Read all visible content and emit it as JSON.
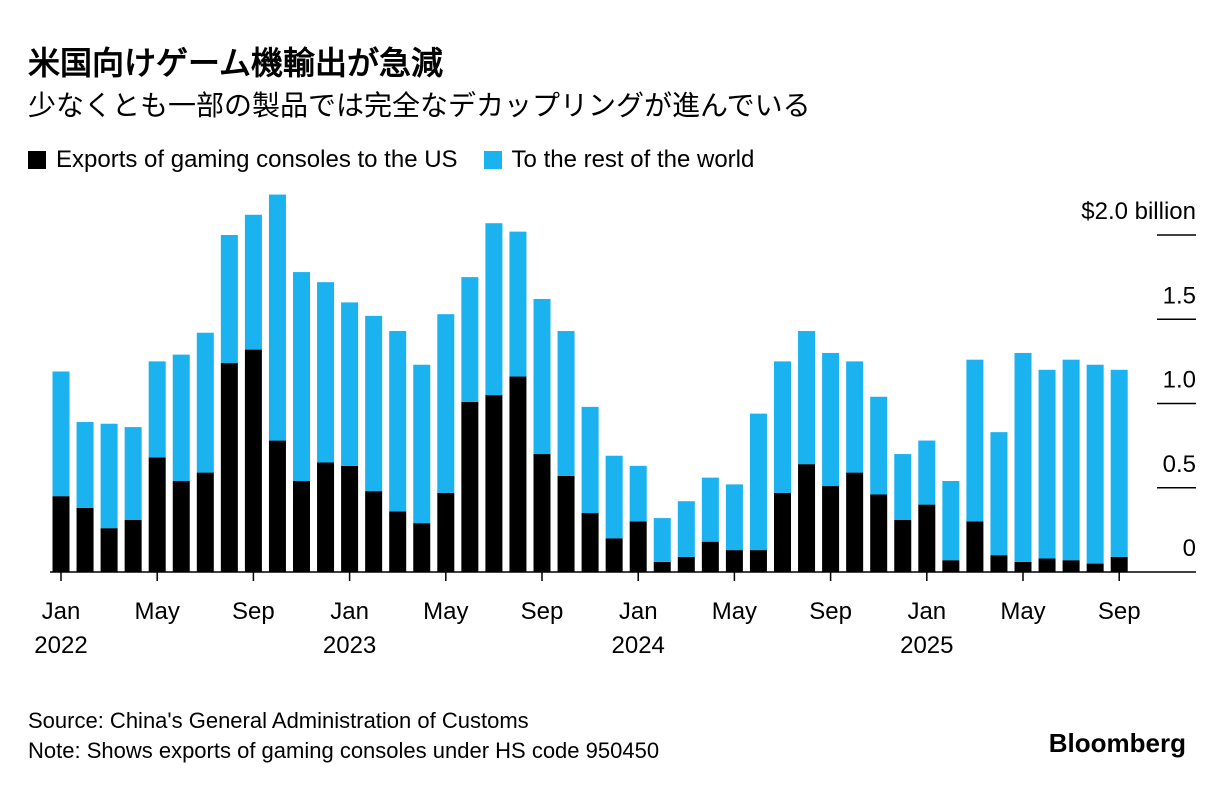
{
  "title": "米国向けゲーム機輸出が急減",
  "subtitle": "少なくとも一部の製品では完全なデカップリングが進んでいる",
  "legend": {
    "us_label": "Exports of gaming consoles to the US",
    "row_label": "To the rest of the world"
  },
  "source": "Source: China's General Administration of Customs",
  "note": "Note: Shows exports of gaming consoles under HS code 950450",
  "brand": "Bloomberg",
  "colors": {
    "us": "#000000",
    "row": "#1bb2f0",
    "axis": "#000000"
  },
  "chart_data": {
    "type": "bar",
    "stacked": true,
    "title": "米国向けゲーム機輸出が急減",
    "ylabel": "",
    "ylim": [
      0,
      2.0
    ],
    "yticks": [
      {
        "value": 2.0,
        "label": "$2.0 billion"
      },
      {
        "value": 1.5,
        "label": "1.5"
      },
      {
        "value": 1.0,
        "label": "1.0"
      },
      {
        "value": 0.5,
        "label": "0.5"
      },
      {
        "value": 0,
        "label": "0"
      }
    ],
    "xticks": [
      {
        "index": 0,
        "month": "Jan",
        "year": "2022"
      },
      {
        "index": 4,
        "month": "May",
        "year": ""
      },
      {
        "index": 8,
        "month": "Sep",
        "year": ""
      },
      {
        "index": 12,
        "month": "Jan",
        "year": "2023"
      },
      {
        "index": 16,
        "month": "May",
        "year": ""
      },
      {
        "index": 20,
        "month": "Sep",
        "year": ""
      },
      {
        "index": 24,
        "month": "Jan",
        "year": "2024"
      },
      {
        "index": 28,
        "month": "May",
        "year": ""
      },
      {
        "index": 32,
        "month": "Sep",
        "year": ""
      },
      {
        "index": 36,
        "month": "Jan",
        "year": "2025"
      },
      {
        "index": 40,
        "month": "May",
        "year": ""
      },
      {
        "index": 44,
        "month": "Sep",
        "year": ""
      }
    ],
    "categories": [
      "Jan 2022",
      "Feb 2022",
      "Mar 2022",
      "Apr 2022",
      "May 2022",
      "Jun 2022",
      "Jul 2022",
      "Aug 2022",
      "Sep 2022",
      "Oct 2022",
      "Nov 2022",
      "Dec 2022",
      "Jan 2023",
      "Feb 2023",
      "Mar 2023",
      "Apr 2023",
      "May 2023",
      "Jun 2023",
      "Jul 2023",
      "Aug 2023",
      "Sep 2023",
      "Oct 2023",
      "Nov 2023",
      "Dec 2023",
      "Jan 2024",
      "Feb 2024",
      "Mar 2024",
      "Apr 2024",
      "May 2024",
      "Jun 2024",
      "Jul 2024",
      "Aug 2024",
      "Sep 2024",
      "Oct 2024",
      "Nov 2024",
      "Dec 2024",
      "Jan 2025",
      "Feb 2025",
      "Mar 2025",
      "Apr 2025",
      "May 2025",
      "Jun 2025",
      "Jul 2025",
      "Aug 2025",
      "Sep 2025"
    ],
    "series": [
      {
        "name": "Exports of gaming consoles to the US",
        "values": [
          0.45,
          0.38,
          0.26,
          0.31,
          0.68,
          0.54,
          0.59,
          1.24,
          1.32,
          0.78,
          0.54,
          0.65,
          0.63,
          0.48,
          0.36,
          0.29,
          0.47,
          1.01,
          1.05,
          1.16,
          0.7,
          0.57,
          0.35,
          0.2,
          0.3,
          0.06,
          0.09,
          0.18,
          0.13,
          0.13,
          0.47,
          0.64,
          0.51,
          0.59,
          0.46,
          0.31,
          0.4,
          0.07,
          0.3,
          0.1,
          0.06,
          0.08,
          0.07,
          0.05,
          0.09
        ]
      },
      {
        "name": "To the rest of the world",
        "values": [
          0.74,
          0.51,
          0.62,
          0.55,
          0.57,
          0.75,
          0.83,
          0.76,
          0.8,
          1.46,
          1.24,
          1.07,
          0.97,
          1.04,
          1.07,
          0.94,
          1.06,
          0.74,
          1.02,
          0.86,
          0.92,
          0.86,
          0.63,
          0.49,
          0.33,
          0.26,
          0.33,
          0.38,
          0.39,
          0.81,
          0.78,
          0.79,
          0.79,
          0.66,
          0.58,
          0.39,
          0.38,
          0.47,
          0.96,
          0.73,
          1.24,
          1.12,
          1.19,
          1.18,
          1.11
        ]
      }
    ]
  }
}
